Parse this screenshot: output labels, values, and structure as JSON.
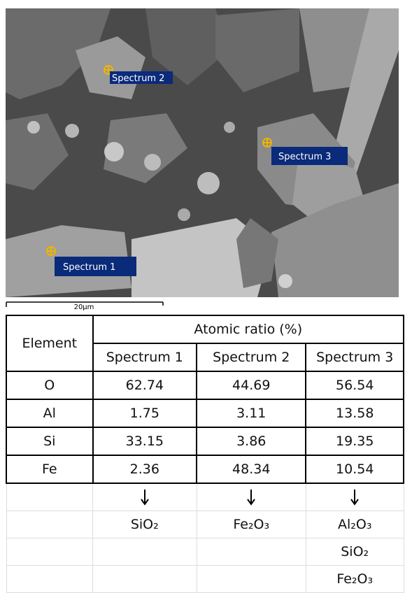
{
  "image": {
    "spectrum_labels": [
      "Spectrum 1",
      "Spectrum 2",
      "Spectrum 3"
    ],
    "scale_bar": "20μm"
  },
  "table": {
    "element_header": "Element",
    "group_header": "Atomic ratio (%)",
    "columns": [
      "Spectrum 1",
      "Spectrum 2",
      "Spectrum 3"
    ],
    "rows": [
      [
        "O",
        62.74,
        44.69,
        56.54
      ],
      [
        "Al",
        1.75,
        3.11,
        13.58
      ],
      [
        "Si",
        33.15,
        3.86,
        19.35
      ],
      [
        "Fe",
        2.36,
        48.34,
        10.54
      ]
    ],
    "phases": [
      [
        "SiO₂"
      ],
      [
        "Fe₂O₃"
      ],
      [
        "Al₂O₃",
        "SiO₂",
        "Fe₂O₃"
      ]
    ]
  }
}
